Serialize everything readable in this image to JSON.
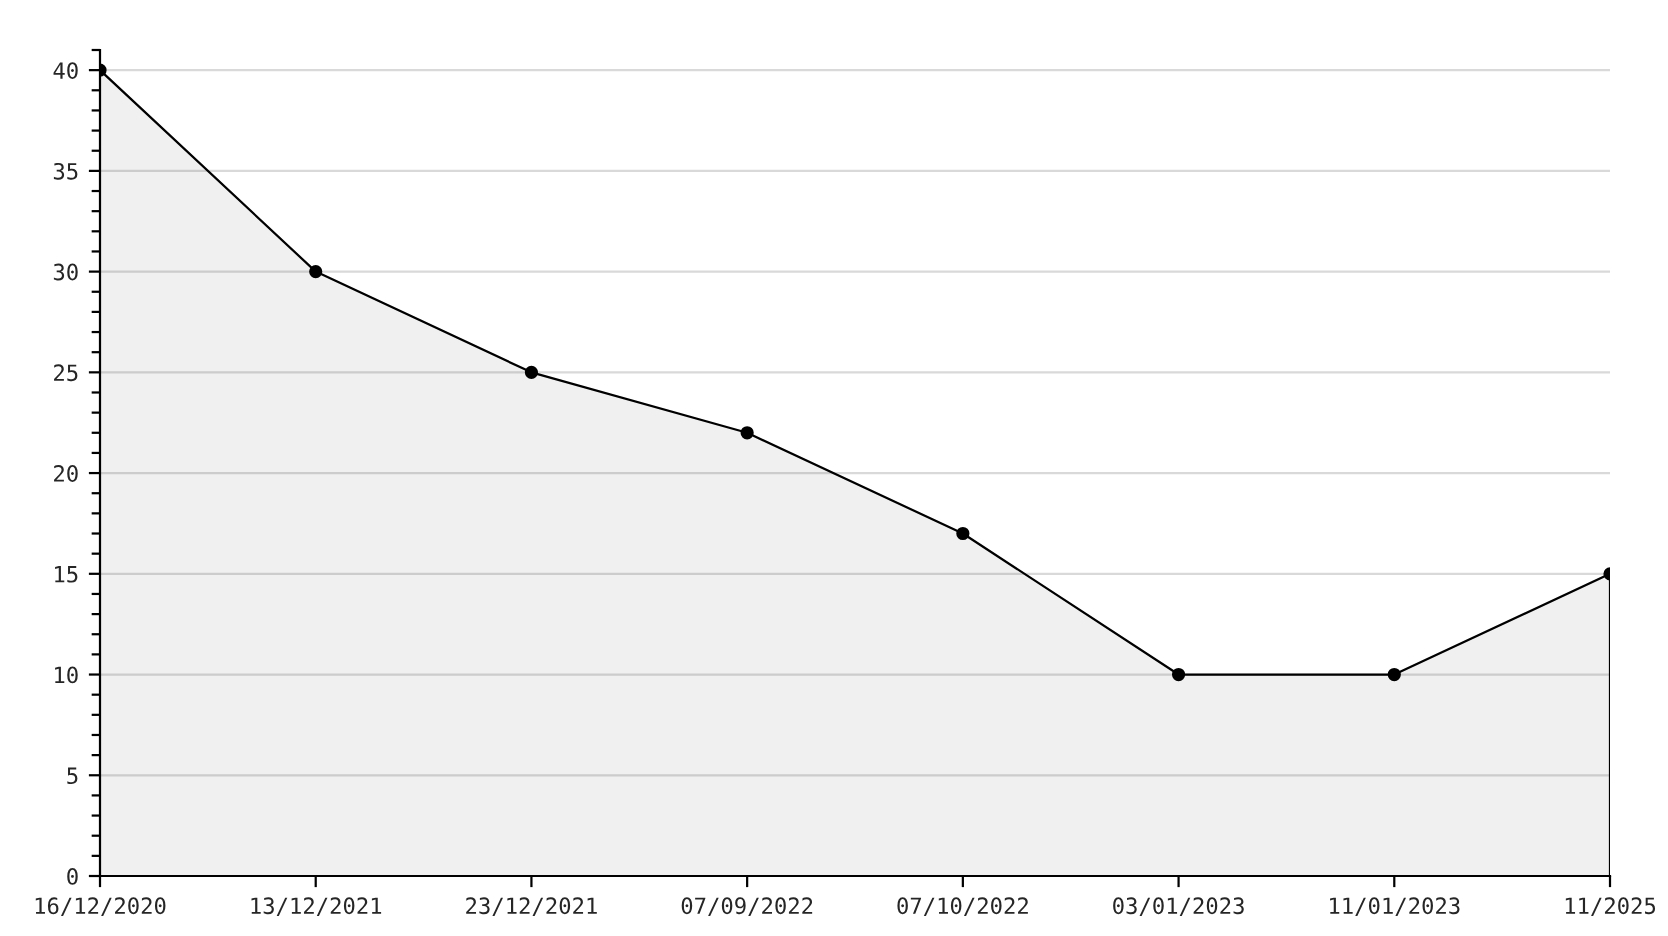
{
  "chart_data": {
    "type": "area",
    "categories": [
      "16/12/2020",
      "13/12/2021",
      "23/12/2021",
      "07/09/2022",
      "07/10/2022",
      "03/01/2023",
      "11/01/2023",
      "11/2025"
    ],
    "series": [
      {
        "color": "#000000",
        "values": [
          40,
          30,
          25,
          22,
          17,
          10,
          10,
          15
        ]
      }
    ],
    "ylim": [
      0,
      41
    ],
    "yticks": [
      0,
      5,
      10,
      15,
      20,
      25,
      30,
      35,
      40
    ],
    "grid": "y",
    "marker": "circle",
    "line_style": "solid"
  }
}
